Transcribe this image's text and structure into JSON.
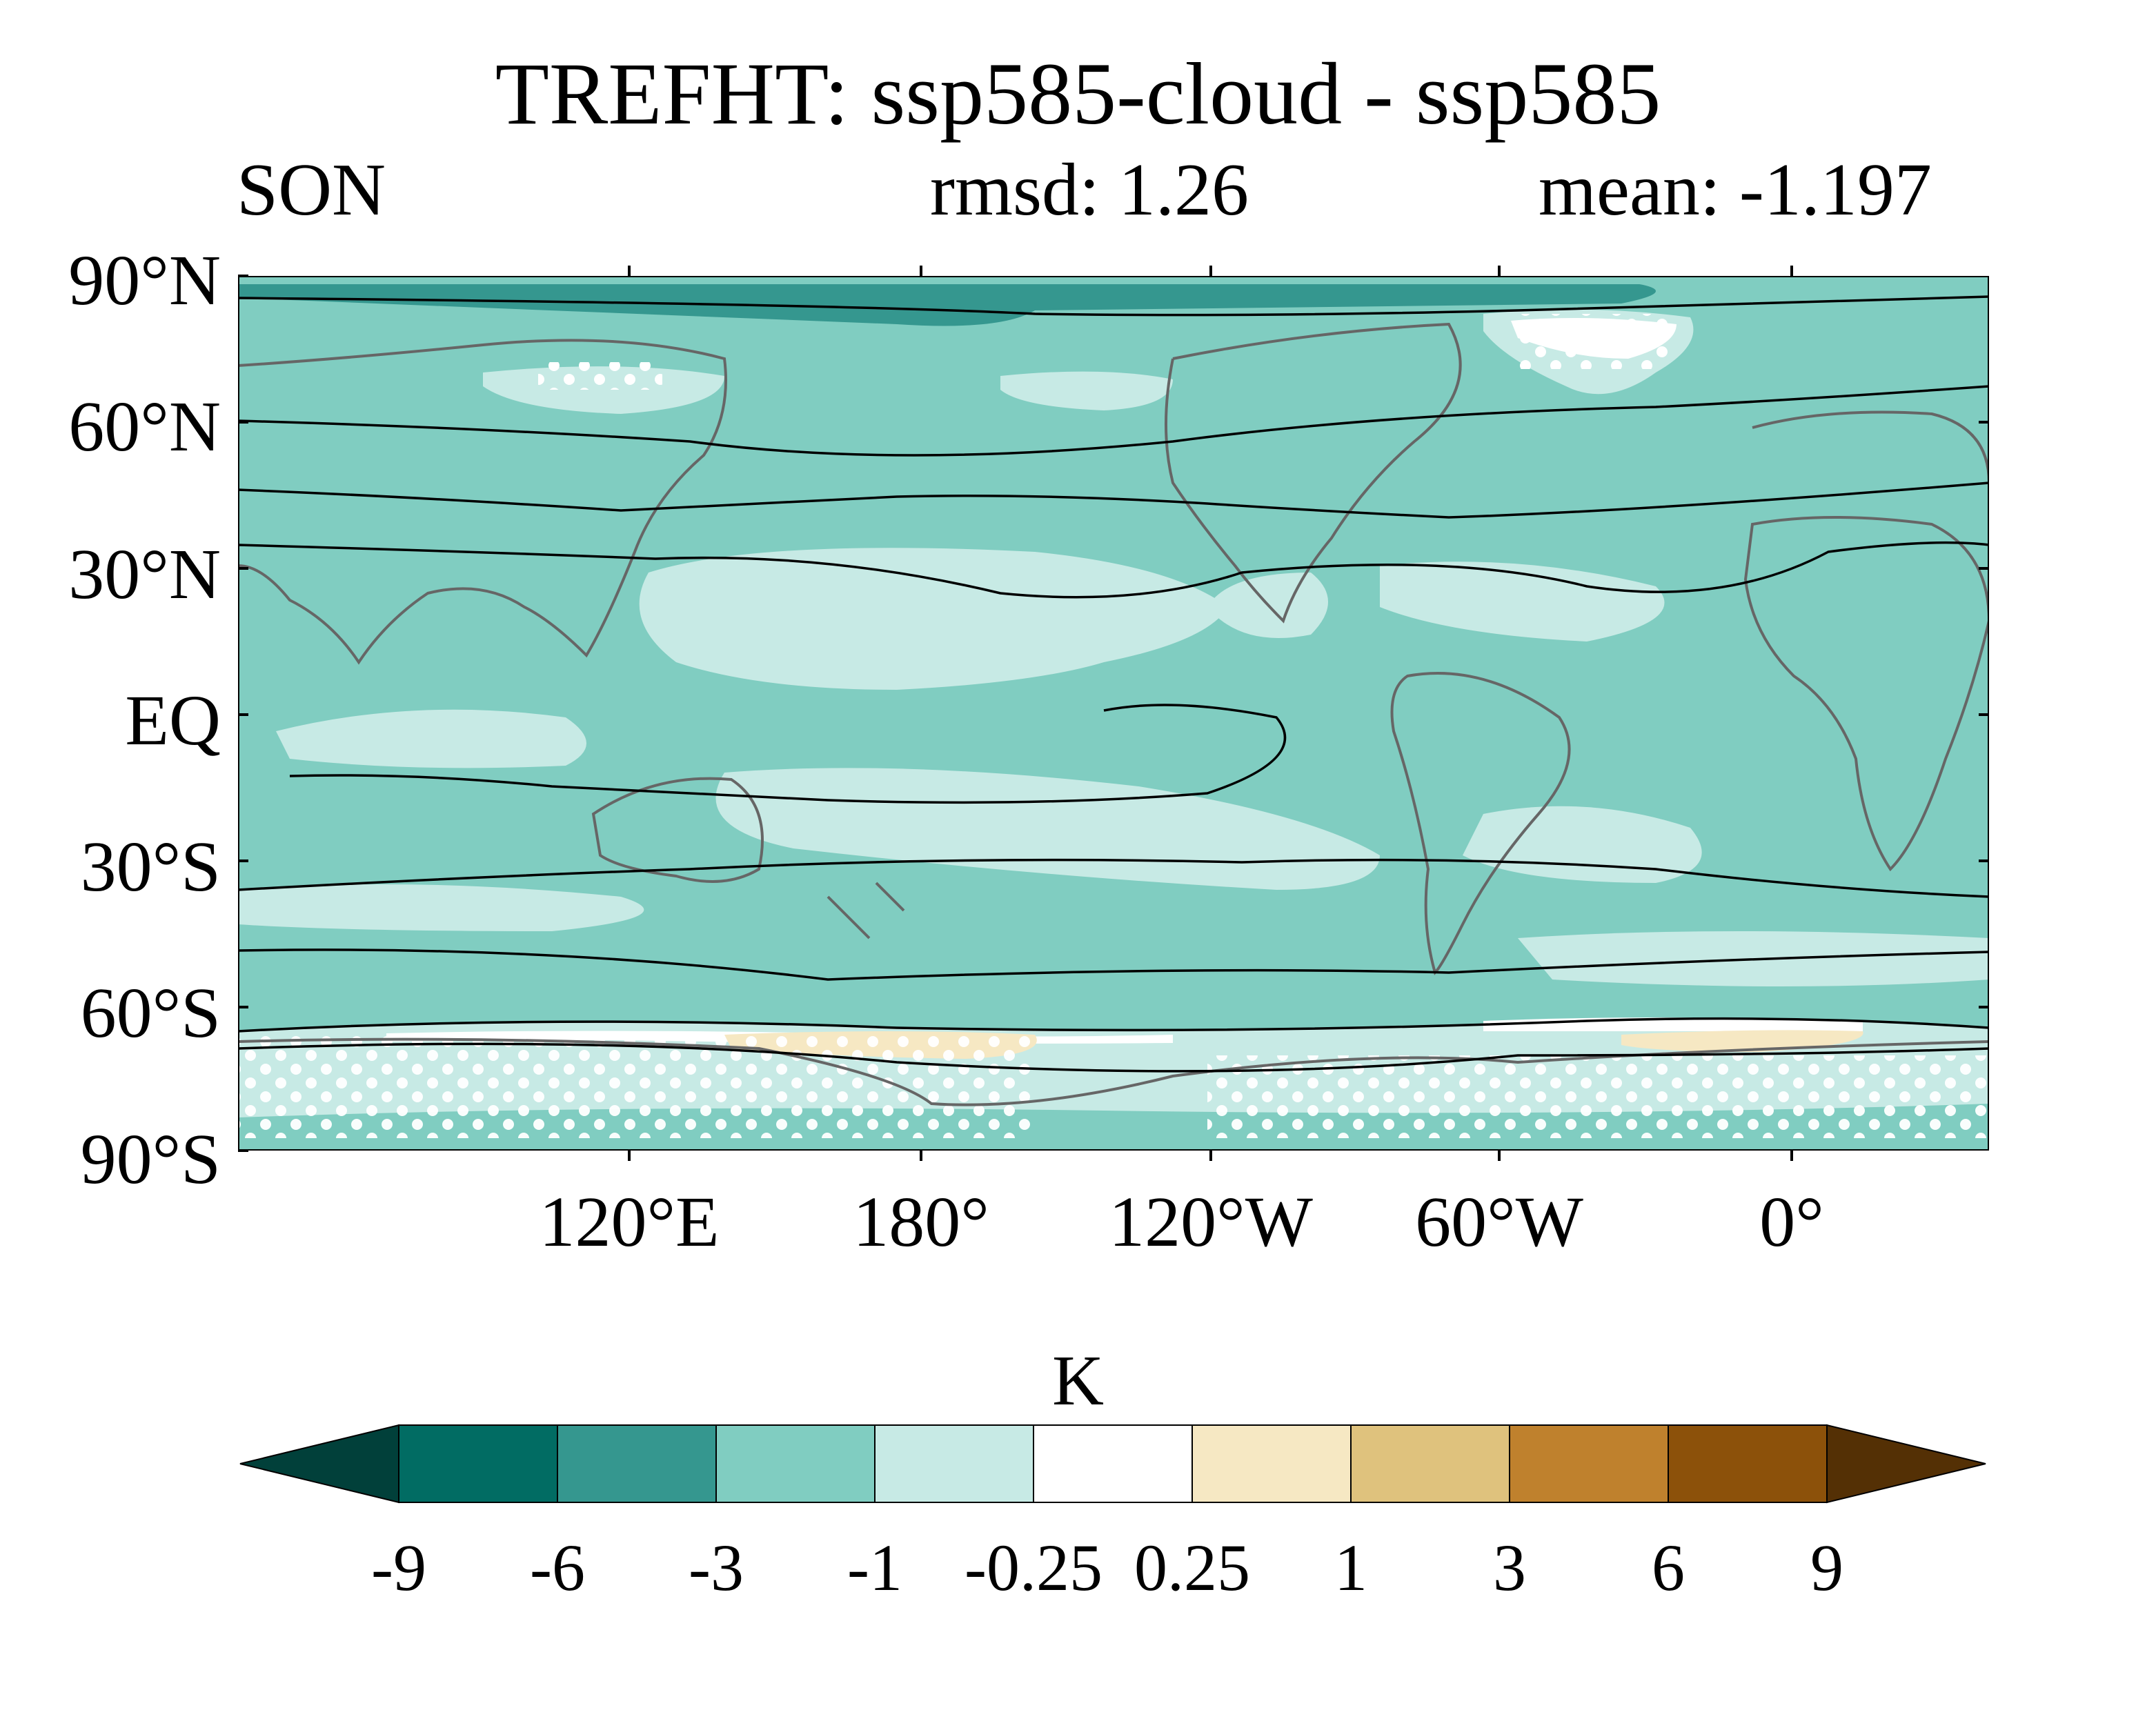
{
  "title": "TREFHT: ssp585-cloud - ssp585",
  "season": "SON",
  "rmsd_text": "rmsd: 1.26",
  "mean_text": "mean: -1.197",
  "lat_labels": [
    "90°N",
    "60°N",
    "30°N",
    "EQ",
    "30°S",
    "60°S",
    "90°S"
  ],
  "lon_labels": [
    "120°E",
    "180°",
    "120°W",
    "60°W",
    "0°"
  ],
  "colorbar": {
    "units": "K",
    "levels": [
      "-9",
      "-6",
      "-3",
      "-1",
      "-0.25",
      "0.25",
      "1",
      "3",
      "6",
      "9"
    ],
    "colors": [
      "#01403a",
      "#016c63",
      "#35978f",
      "#80cdc1",
      "#c7eae5",
      "#ffffff",
      "#f6e8c3",
      "#dfc27d",
      "#bf812d",
      "#8c510a",
      "#543005"
    ]
  },
  "map": {
    "projection": "equirectangular",
    "ocean_fill": "#80cdc1",
    "light_fill": "#c7eae5",
    "dark_fill": "#35978f",
    "warm_fill": "#f6e8c3",
    "stipple": "white dots mark significance"
  }
}
